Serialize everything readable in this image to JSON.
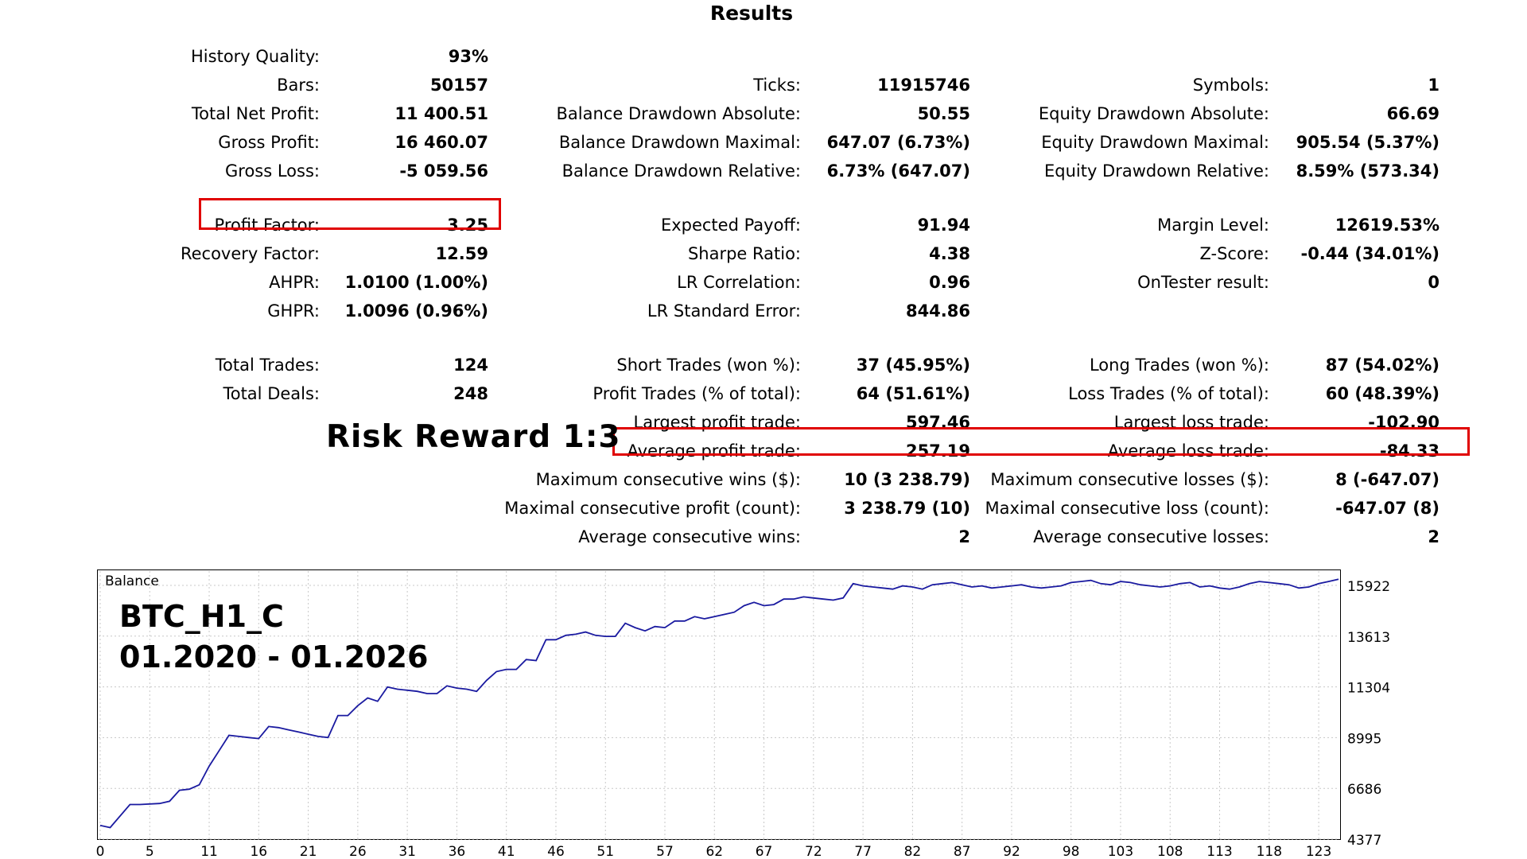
{
  "title": "Results",
  "col1": [
    {
      "label": "History Quality:",
      "value": "93%"
    },
    {
      "label": "Bars:",
      "value": "50157"
    },
    {
      "label": "Total Net Profit:",
      "value": "11 400.51"
    },
    {
      "label": "Gross Profit:",
      "value": "16 460.07"
    },
    {
      "label": "Gross Loss:",
      "value": "-5 059.56"
    },
    {
      "label": "Profit Factor:",
      "value": "3.25"
    },
    {
      "label": "Recovery Factor:",
      "value": "12.59"
    },
    {
      "label": "AHPR:",
      "value": "1.0100 (1.00%)"
    },
    {
      "label": "GHPR:",
      "value": "1.0096 (0.96%)"
    },
    {
      "label": "Total Trades:",
      "value": "124"
    },
    {
      "label": "Total Deals:",
      "value": "248"
    }
  ],
  "col2": [
    {
      "label": "Ticks:",
      "value": "11915746"
    },
    {
      "label": "Balance Drawdown Absolute:",
      "value": "50.55"
    },
    {
      "label": "Balance Drawdown Maximal:",
      "value": "647.07 (6.73%)"
    },
    {
      "label": "Balance Drawdown Relative:",
      "value": "6.73% (647.07)"
    },
    {
      "label": "Expected Payoff:",
      "value": "91.94"
    },
    {
      "label": "Sharpe Ratio:",
      "value": "4.38"
    },
    {
      "label": "LR Correlation:",
      "value": "0.96"
    },
    {
      "label": "LR Standard Error:",
      "value": "844.86"
    },
    {
      "label": "Short Trades (won %):",
      "value": "37 (45.95%)"
    },
    {
      "label": "Profit Trades (% of total):",
      "value": "64 (51.61%)"
    },
    {
      "label": "Largest profit trade:",
      "value": "597.46"
    },
    {
      "label": "Average profit trade:",
      "value": "257.19"
    },
    {
      "label": "Maximum consecutive wins ($):",
      "value": "10 (3 238.79)"
    },
    {
      "label": "Maximal consecutive profit (count):",
      "value": "3 238.79 (10)"
    },
    {
      "label": "Average consecutive wins:",
      "value": "2"
    }
  ],
  "col3": [
    {
      "label": "Symbols:",
      "value": "1"
    },
    {
      "label": "Equity Drawdown Absolute:",
      "value": "66.69"
    },
    {
      "label": "Equity Drawdown Maximal:",
      "value": "905.54 (5.37%)"
    },
    {
      "label": "Equity Drawdown Relative:",
      "value": "8.59% (573.34)"
    },
    {
      "label": "Margin Level:",
      "value": "12619.53%"
    },
    {
      "label": "Z-Score:",
      "value": "-0.44 (34.01%)"
    },
    {
      "label": "OnTester result:",
      "value": "0"
    },
    {
      "label": "Long Trades (won %):",
      "value": "87 (54.02%)"
    },
    {
      "label": "Loss Trades (% of total):",
      "value": "60 (48.39%)"
    },
    {
      "label": "Largest loss trade:",
      "value": "-102.90"
    },
    {
      "label": "Average loss trade:",
      "value": "-84.33"
    },
    {
      "label": "Maximum consecutive losses ($):",
      "value": "8 (-647.07)"
    },
    {
      "label": "Maximal consecutive loss (count):",
      "value": "-647.07 (8)"
    },
    {
      "label": "Average consecutive losses:",
      "value": "2"
    }
  ],
  "annotation": "Risk Reward 1:3",
  "colors": {
    "highlight": "#e00000",
    "line": "#1a1aa0",
    "grid": "#c8c8c8"
  },
  "chart_data": {
    "type": "line",
    "title": "Balance",
    "overlay_line1": "BTC_H1_C",
    "overlay_line2": "01.2020 - 01.2026",
    "xlabel": "",
    "ylabel": "",
    "xlim": [
      0,
      125
    ],
    "ylim": [
      4377,
      16500
    ],
    "x_ticks": [
      0,
      5,
      11,
      16,
      21,
      26,
      31,
      36,
      41,
      46,
      51,
      57,
      62,
      67,
      72,
      77,
      82,
      87,
      92,
      98,
      103,
      108,
      113,
      118,
      123
    ],
    "y_ticks": [
      4377,
      6686,
      8995,
      11304,
      13613,
      15922
    ],
    "grid": true,
    "series": [
      {
        "x": [
          0,
          1,
          3,
          4,
          6,
          7,
          8,
          9,
          10,
          11,
          12,
          13,
          14,
          15,
          16,
          17,
          18,
          19,
          20,
          21,
          22,
          23,
          24,
          25,
          26,
          27,
          28,
          29,
          30,
          31,
          32,
          33,
          34,
          35,
          36,
          37,
          38,
          39,
          40,
          41,
          42,
          43,
          44,
          45,
          46,
          47,
          48,
          49,
          50,
          51,
          52,
          53,
          54,
          55,
          56,
          57,
          58,
          59,
          60,
          61,
          62,
          63,
          64,
          65,
          66,
          67,
          68,
          69,
          70,
          71,
          72,
          73,
          74,
          75,
          76,
          77,
          78,
          79,
          80,
          81,
          82,
          83,
          84,
          85,
          86,
          87,
          88,
          89,
          90,
          91,
          92,
          93,
          94,
          95,
          96,
          97,
          98,
          99,
          100,
          101,
          102,
          103,
          104,
          105,
          106,
          107,
          108,
          109,
          110,
          111,
          112,
          113,
          114,
          115,
          116,
          117,
          118,
          119,
          120,
          121,
          122,
          123,
          124,
          125
        ],
        "values": [
          5000,
          4900,
          5950,
          5950,
          6000,
          6100,
          6600,
          6650,
          6850,
          7700,
          8400,
          9100,
          9050,
          9000,
          8950,
          9500,
          9450,
          9350,
          9250,
          9150,
          9050,
          9000,
          10000,
          10000,
          10450,
          10800,
          10650,
          11300,
          11200,
          11150,
          11100,
          11000,
          11000,
          11350,
          11250,
          11200,
          11100,
          11600,
          12000,
          12100,
          12100,
          12550,
          12500,
          13450,
          13450,
          13650,
          13700,
          13800,
          13650,
          13600,
          13600,
          14200,
          14000,
          13850,
          14050,
          14000,
          14300,
          14300,
          14500,
          14400,
          14500,
          14600,
          14700,
          15000,
          15150,
          15000,
          15050,
          15300,
          15300,
          15400,
          15350,
          15300,
          15250,
          15350,
          16000,
          15900,
          15850,
          15800,
          15750,
          15900,
          15850,
          15750,
          15950,
          16000,
          16050,
          15950,
          15850,
          15900,
          15800,
          15850,
          15900,
          15950,
          15850,
          15800,
          15850,
          15900,
          16050,
          16100,
          16150,
          16000,
          15950,
          16100,
          16050,
          15950,
          15900,
          15850,
          15900,
          16000,
          16050,
          15850,
          15900,
          15800,
          15750,
          15850,
          16000,
          16100,
          16050,
          16000,
          15950,
          15800,
          15850,
          16000,
          16100,
          16200
        ]
      }
    ]
  }
}
